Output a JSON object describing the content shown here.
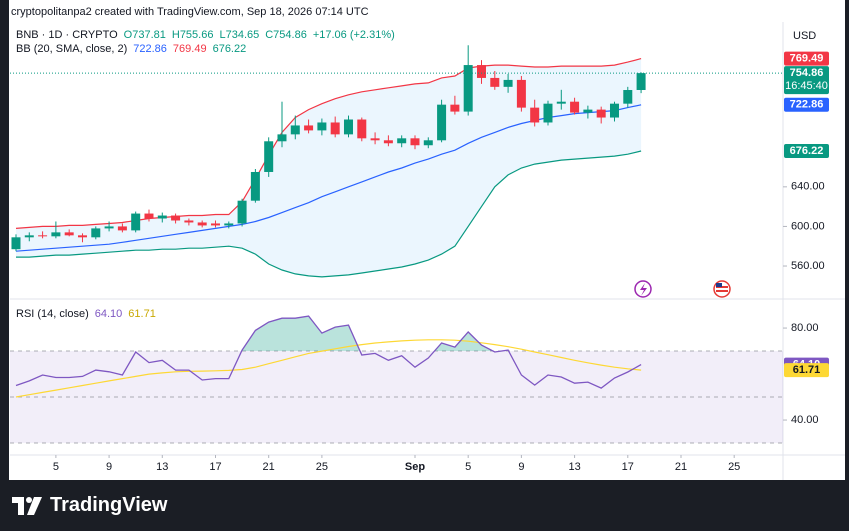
{
  "header": {
    "attribution": "cryptopolitanpa2 created with TradingView.com, Sep 18, 2026 07:14 UTC"
  },
  "footer": {
    "logo_text": "TradingView"
  },
  "chart_data": [
    {
      "type": "candlestick",
      "symbol": "BNB · 1D · CRYPTO",
      "legend_values": [
        "O737.81",
        "H755.66",
        "L734.65",
        "C754.86",
        "+17.06 (+2.31%)"
      ],
      "currency": "USD",
      "last_price_label": "754.86",
      "countdown": "16:45:40",
      "up_color": "#089981",
      "down_color": "#f23645",
      "open": [
        577,
        589,
        591,
        590,
        594,
        591,
        589,
        598,
        600,
        596,
        613,
        608,
        611,
        606,
        604,
        603,
        601,
        603,
        626,
        655,
        686,
        693,
        702,
        697,
        705,
        693,
        708,
        689,
        687,
        684,
        689,
        682,
        687,
        723,
        716,
        763,
        750,
        741,
        748,
        720,
        705,
        724,
        726,
        715,
        718,
        710,
        724,
        737.81
      ],
      "high": [
        592,
        594,
        595,
        605,
        597,
        593,
        600,
        605,
        603,
        615,
        617,
        614,
        613,
        608,
        606,
        606,
        605,
        628,
        658,
        690,
        726,
        712,
        708,
        709,
        711,
        712,
        710,
        695,
        692,
        692,
        692,
        690,
        728,
        732,
        783,
        768,
        757,
        754,
        752,
        728,
        727,
        738,
        730,
        722,
        721,
        726,
        741,
        755.66
      ],
      "low": [
        575,
        585,
        588,
        588,
        590,
        584,
        587,
        595,
        594,
        594,
        605,
        604,
        603,
        601,
        599,
        599,
        598,
        600,
        624,
        650,
        680,
        688,
        694,
        692,
        690,
        690,
        686,
        683,
        681,
        680,
        678,
        679,
        685,
        713,
        712,
        744,
        738,
        735,
        716,
        701,
        702,
        718,
        713,
        709,
        704,
        706,
        720,
        734.65
      ],
      "close": [
        589,
        591,
        590,
        594,
        591,
        589,
        598,
        600,
        596,
        613,
        608,
        611,
        606,
        604,
        601,
        601,
        603,
        626,
        655,
        686,
        693,
        702,
        697,
        705,
        693,
        708,
        689,
        687,
        684,
        689,
        682,
        687,
        723,
        716,
        763,
        750,
        741,
        748,
        720,
        705,
        724,
        726,
        715,
        718,
        710,
        724,
        737.8,
        754.86
      ],
      "bollinger": {
        "label": "BB (20, SMA, close, 2)",
        "fill": "rgba(33,150,243,0.09)",
        "basis": {
          "color": "#2962ff",
          "last_label": "722.86",
          "values": [
            575,
            576,
            577,
            578,
            579,
            580,
            581,
            582,
            584,
            586,
            588,
            590,
            592,
            594,
            596,
            598,
            600,
            602,
            605,
            609,
            614,
            619,
            624,
            630,
            635,
            640,
            645,
            650,
            655,
            659,
            664,
            668,
            673,
            677,
            684,
            690,
            695,
            700,
            704,
            707,
            710,
            712,
            714,
            715,
            716,
            717,
            720,
            722.86
          ]
        },
        "upper": {
          "color": "#f23645",
          "last_label": "769.49",
          "values": [
            598,
            599,
            600,
            600,
            601,
            601,
            602,
            603,
            604,
            606,
            608,
            609,
            610,
            611,
            611,
            612,
            612,
            625,
            648,
            672,
            695,
            710,
            718,
            724,
            729,
            733,
            736,
            738,
            740,
            742,
            744,
            745,
            750,
            752,
            760,
            762,
            763,
            763,
            762,
            761,
            761,
            762,
            762,
            762,
            762,
            763,
            766,
            769.49
          ]
        },
        "lower": {
          "color": "#089981",
          "last_label": "676.22",
          "values": [
            569,
            569,
            570,
            571,
            571,
            572,
            573,
            574,
            575,
            576,
            576,
            577,
            577,
            578,
            578,
            579,
            580,
            578,
            572,
            562,
            556,
            552,
            550,
            549,
            550,
            551,
            553,
            555,
            557,
            559,
            562,
            566,
            572,
            580,
            600,
            620,
            640,
            652,
            659,
            663,
            665,
            667,
            668,
            669,
            670,
            671,
            673,
            676.22
          ]
        }
      },
      "xlim": [
        -0.45,
        57.67
      ],
      "xticks": [
        {
          "value": 3,
          "label": "5"
        },
        {
          "value": 7,
          "label": "9"
        },
        {
          "value": 11,
          "label": "13"
        },
        {
          "value": 15,
          "label": "17"
        },
        {
          "value": 19,
          "label": "21"
        },
        {
          "value": 23,
          "label": "25"
        },
        {
          "value": 30,
          "label": "Sep"
        },
        {
          "value": 34,
          "label": "5"
        },
        {
          "value": 38,
          "label": "9"
        },
        {
          "value": 42,
          "label": "13"
        },
        {
          "value": 46,
          "label": "17"
        },
        {
          "value": 50,
          "label": "21"
        },
        {
          "value": 54,
          "label": "25"
        }
      ],
      "ylim": [
        527.7,
        806.5
      ],
      "yticks": [
        {
          "value": 560,
          "label": "560.00"
        },
        {
          "value": 600,
          "label": "600.00"
        },
        {
          "value": 640,
          "label": "640.00"
        }
      ],
      "grid": false
    },
    {
      "type": "line",
      "title": "RSI (14, close)",
      "rsi": {
        "color": "#7e57c2",
        "last_label": "64.10",
        "values": [
          55,
          57,
          59.6,
          58.5,
          58.5,
          59,
          61.7,
          61,
          59.6,
          69.6,
          65,
          66,
          61.7,
          61.7,
          57.4,
          58,
          58,
          70.4,
          79,
          82.6,
          84.3,
          84.3,
          85.2,
          77.8,
          80.4,
          81.3,
          68.3,
          69,
          66,
          68,
          63,
          67,
          73.5,
          71.7,
          78.3,
          72.6,
          69.6,
          70.4,
          59.6,
          55.2,
          59.6,
          58.7,
          56,
          56.5,
          53.9,
          58.3,
          60.9,
          64.1
        ]
      },
      "rsi_ma": {
        "color": "#fdd835",
        "last_label": "61.71",
        "values": [
          50,
          51,
          52,
          53,
          54,
          55,
          56,
          57,
          58,
          59,
          60,
          60.5,
          61,
          61.2,
          61.3,
          61.4,
          61.6,
          62,
          63,
          64.5,
          66,
          67.5,
          69,
          70,
          71,
          72,
          72.8,
          73.5,
          74,
          74.4,
          74.7,
          74.9,
          74.9,
          74.7,
          74.3,
          73.6,
          72.8,
          71.9,
          70.8,
          69.6,
          68.4,
          67.2,
          66,
          64.9,
          63.9,
          63,
          62.3,
          61.71
        ]
      },
      "bands": [
        30,
        50,
        70
      ],
      "band_fill": "rgba(126,87,194,0.1)",
      "overbought_fill": "rgba(8,153,129,0.28)",
      "ylim": [
        24.8,
        92.2
      ],
      "yticks": [
        {
          "value": 40,
          "label": "40.00"
        },
        {
          "value": 80,
          "label": "80.00"
        }
      ]
    }
  ]
}
